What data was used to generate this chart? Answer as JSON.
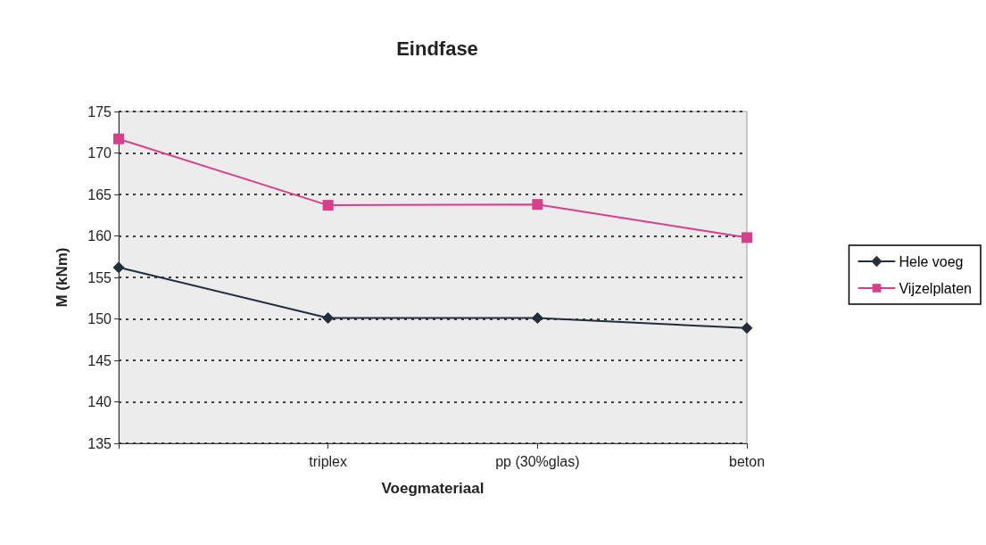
{
  "chart_data": {
    "type": "line",
    "title": "Eindfase",
    "xlabel": "Voegmateriaal",
    "ylabel": "M (kNm)",
    "categories": [
      null,
      "triplex",
      "pp (30%glas)",
      "beton"
    ],
    "series": [
      {
        "name": "Hele voeg",
        "color": "#1f2d3d",
        "marker": "diamond",
        "values": [
          156.2,
          150.1,
          150.1,
          148.9
        ]
      },
      {
        "name": "Vijzelplaten",
        "color": "#d6408a",
        "marker": "square",
        "values": [
          171.7,
          163.7,
          163.8,
          159.8
        ]
      }
    ],
    "ylim": [
      135,
      175
    ],
    "yticks": [
      135,
      140,
      145,
      150,
      155,
      160,
      165,
      170,
      175
    ],
    "grid": "y",
    "legend": "right",
    "line_style": "solid"
  }
}
